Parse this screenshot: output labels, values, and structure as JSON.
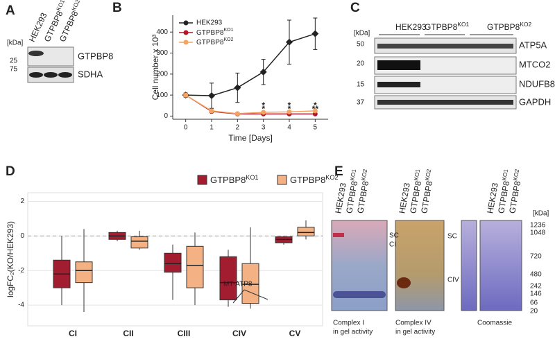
{
  "blot_a": {
    "letter": "A",
    "unit": "[kDa]",
    "markers": [
      25,
      75
    ],
    "lanes": [
      "HEK293",
      "GTPBP8KO1",
      "GTPBP8KO2"
    ],
    "proteins": [
      "GTPBP8",
      "SDHA"
    ]
  },
  "blot_c": {
    "letter": "C",
    "unit": "[kDa]",
    "markers": [
      50,
      20,
      15,
      37
    ],
    "groups": [
      "HEK293",
      "GTPBP8KO1",
      "GTPBP8KO2"
    ],
    "proteins": [
      "ATP5A",
      "MTCO2",
      "NDUFB8",
      "GAPDH"
    ]
  },
  "gels_e": {
    "letter": "E",
    "lanes": [
      "HEK293",
      "GTPBP8KO1",
      "GTPBP8KO2"
    ],
    "gel_labels": [
      "SC",
      "CI",
      "SC",
      "CIV"
    ],
    "unit": "[kDa]",
    "markers": [
      1236,
      1048,
      720,
      480,
      242,
      146,
      66,
      20
    ],
    "captions": [
      [
        "Complex I",
        "in gel activity"
      ],
      [
        "Complex IV",
        "in gel activity"
      ],
      [
        "Coomassie"
      ]
    ]
  },
  "chart_data": [
    {
      "type": "line",
      "letter": "B",
      "x_label": "Time [Days]",
      "y_label": "Cell number x 10³",
      "x": [
        0,
        1,
        2,
        3,
        4,
        5
      ],
      "xlim": [
        -0.5,
        5.5
      ],
      "xticks": [
        0,
        1,
        2,
        3,
        4,
        5
      ],
      "ylim": [
        -15,
        480
      ],
      "yticks": [
        0,
        100,
        200,
        300,
        400
      ],
      "series": [
        {
          "name": "HEK293",
          "color": "#222222",
          "marker": "diamond",
          "values": [
            100,
            97,
            135,
            210,
            352,
            392
          ],
          "errors": [
            10,
            60,
            70,
            60,
            105,
            75
          ]
        },
        {
          "name": "GTPBP8KO1",
          "color": "#b2182b",
          "marker": "circle",
          "values": [
            100,
            22,
            10,
            10,
            10,
            10
          ],
          "errors": [
            5,
            6,
            3,
            3,
            3,
            3
          ]
        },
        {
          "name": "GTPBP8KO2",
          "color": "#f4a460",
          "marker": "circle",
          "values": [
            100,
            25,
            12,
            18,
            20,
            25
          ],
          "errors": [
            5,
            6,
            3,
            4,
            4,
            5
          ]
        }
      ],
      "annotations": [
        {
          "x": 3,
          "y": 48,
          "text": "*",
          "color": "#b2182b"
        },
        {
          "x": 4,
          "y": 48,
          "text": "*",
          "color": "#b2182b"
        },
        {
          "x": 5,
          "y": 48,
          "text": "*",
          "color": "#b2182b"
        },
        {
          "x": 3,
          "y": 32,
          "text": "*",
          "color": "#f4a460"
        },
        {
          "x": 4,
          "y": 32,
          "text": "*",
          "color": "#f4a460"
        },
        {
          "x": 5,
          "y": 32,
          "text": "**",
          "color": "#f4a460"
        }
      ]
    },
    {
      "type": "box",
      "letter": "D",
      "y_label": "logFC₂(KO/HEK293)",
      "categories": [
        "CI",
        "CII",
        "CIII",
        "CIV",
        "CV"
      ],
      "ylim": [
        -5.2,
        2.5
      ],
      "yticks": [
        -4,
        -2,
        0,
        2
      ],
      "grid": true,
      "refline": 0,
      "annotation": "MT-ATP8",
      "series": [
        {
          "name": "GTPBP8KO1",
          "color": "#a31d31",
          "low": [
            -4,
            -0.3,
            -3.7,
            -4.1,
            -0.5
          ],
          "q1": [
            -3,
            -0.2,
            -2.1,
            -3.7,
            -0.4
          ],
          "median": [
            -2.2,
            0,
            -1.6,
            -2.7,
            -0.2
          ],
          "q3": [
            -1.4,
            0.2,
            -1,
            -1.2,
            -0.05
          ],
          "high": [
            0,
            0.3,
            -0.5,
            -0.8,
            0
          ]
        },
        {
          "name": "GTPBP8KO2",
          "color": "#f4b183",
          "low": [
            -4.4,
            -0.8,
            -4,
            -4.2,
            -0.2
          ],
          "q1": [
            -2.7,
            -0.7,
            -3,
            -3.9,
            0
          ],
          "median": [
            -2,
            -0.3,
            -1.7,
            -2.8,
            0.2
          ],
          "q3": [
            -1.5,
            -0.05,
            -0.6,
            -1.6,
            0.5
          ],
          "high": [
            0.4,
            0.3,
            0.2,
            0.5,
            0.9
          ]
        }
      ]
    }
  ]
}
